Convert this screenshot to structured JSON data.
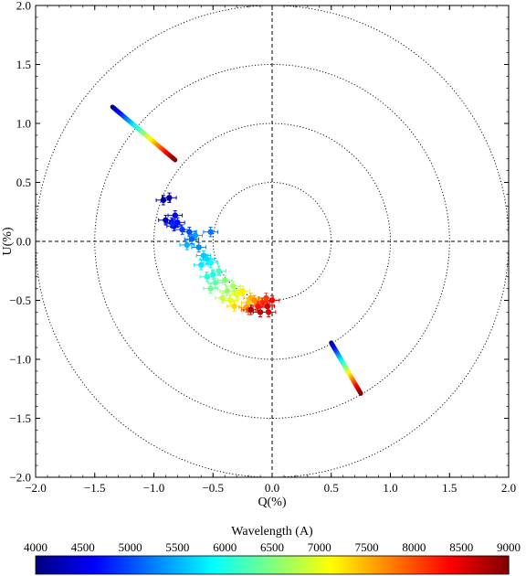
{
  "chart_data": {
    "type": "scatter",
    "title": "",
    "xlabel": "Q(%)",
    "ylabel": "U(%)",
    "xlim": [
      -2.0,
      2.0
    ],
    "ylim": [
      -2.0,
      2.0
    ],
    "x_ticks": [
      "−2.0",
      "−1.5",
      "−1.0",
      "−0.5",
      "0.0",
      "0.5",
      "1.0",
      "1.5",
      "2.0"
    ],
    "y_ticks": [
      "2.0",
      "1.5",
      "1.0",
      "0.5",
      "0.0",
      "−0.5",
      "−1.0",
      "−1.5",
      "−2.0"
    ],
    "grid": false,
    "reference_circles_radius": [
      0.5,
      1.0,
      1.5,
      2.0
    ],
    "reference_lines": "dashed lines at Q=0 and U=0",
    "colormap": "jet",
    "colorbar": {
      "label": "Wavelength (A)",
      "range": [
        4000,
        9000
      ],
      "ticks": [
        "4000",
        "4500",
        "5000",
        "5500",
        "6000",
        "6500",
        "7000",
        "7500",
        "8000",
        "8500",
        "9000"
      ],
      "placement": "bottom"
    },
    "series": [
      {
        "kind": "points_with_errorbars",
        "wavelength": [
          4100,
          4200,
          4300,
          4400,
          4500,
          4600,
          4700,
          4800,
          4900,
          5000,
          5100,
          5200,
          5300,
          5400,
          5500,
          5600,
          5700,
          5800,
          5900,
          6000,
          6100,
          6200,
          6300,
          6400,
          6500,
          6600,
          6700,
          6800,
          6900,
          7000,
          7100,
          7200,
          7300,
          7400,
          7500,
          7600,
          7700,
          7800,
          7900,
          8000,
          8100,
          8200,
          8300,
          8400,
          8500,
          8600,
          8700,
          8800
        ],
        "q": [
          -0.92,
          -0.87,
          -0.9,
          -0.85,
          -0.83,
          -0.82,
          -0.8,
          -0.84,
          -0.76,
          -0.7,
          -0.68,
          -0.52,
          -0.62,
          -0.65,
          -0.72,
          -0.58,
          -0.55,
          -0.6,
          -0.52,
          -0.5,
          -0.55,
          -0.45,
          -0.48,
          -0.52,
          -0.4,
          -0.38,
          -0.33,
          -0.42,
          -0.3,
          -0.35,
          -0.28,
          -0.25,
          -0.32,
          -0.2,
          -0.18,
          -0.22,
          -0.15,
          -0.12,
          -0.1,
          -0.2,
          -0.05,
          -0.08,
          -0.12,
          0.0,
          -0.03,
          -0.04,
          -0.1,
          -0.18
        ],
        "u": [
          0.35,
          0.37,
          0.18,
          0.16,
          0.13,
          0.22,
          0.16,
          0.15,
          0.1,
          0.08,
          0.02,
          0.08,
          -0.05,
          0.05,
          -0.03,
          -0.12,
          -0.15,
          -0.2,
          -0.18,
          -0.28,
          -0.3,
          -0.25,
          -0.35,
          -0.4,
          -0.33,
          -0.42,
          -0.38,
          -0.48,
          -0.45,
          -0.5,
          -0.44,
          -0.42,
          -0.55,
          -0.52,
          -0.48,
          -0.56,
          -0.5,
          -0.55,
          -0.6,
          -0.58,
          -0.48,
          -0.52,
          -0.55,
          -0.5,
          -0.6,
          -0.55,
          -0.6,
          -0.58
        ],
        "err_q": 0.06,
        "err_u": 0.04
      },
      {
        "kind": "line_segment",
        "q": [
          -1.35,
          -0.82
        ],
        "u": [
          1.14,
          0.69
        ],
        "wavelength_range": [
          4000,
          9000
        ]
      },
      {
        "kind": "line_segment",
        "q": [
          0.5,
          0.75
        ],
        "u": [
          -0.86,
          -1.29
        ],
        "wavelength_range": [
          4000,
          9000
        ]
      }
    ]
  }
}
